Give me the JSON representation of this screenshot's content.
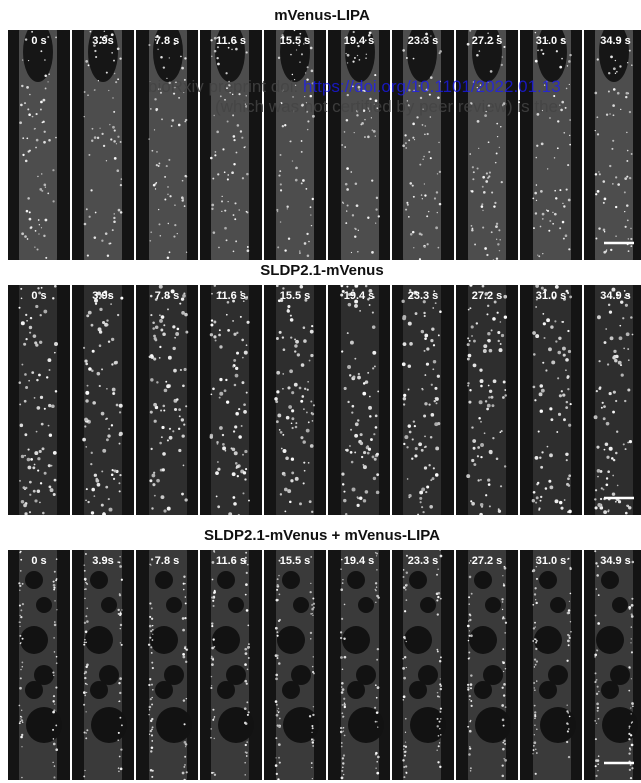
{
  "panels": [
    {
      "title": "mVenus-LIPA",
      "timepoints": [
        "0 s",
        "3.9s",
        "7.8 s",
        "11.6 s",
        "15.5 s",
        "19.4 s",
        "23.3 s",
        "27.2 s",
        "31.0 s",
        "34.9 s"
      ]
    },
    {
      "title": "SLDP2.1-mVenus",
      "timepoints": [
        "0 s",
        "3.9s",
        "7.8 s",
        "11.6 s",
        "15.5 s",
        "19.4 s",
        "23.3 s",
        "27.2 s",
        "31.0 s",
        "34.9 s"
      ]
    },
    {
      "title": "SLDP2.1-mVenus + mVenus-LIPA",
      "timepoints": [
        "0 s",
        "3.9s",
        "7.8 s",
        "11.6 s",
        "15.5 s",
        "19.4 s",
        "23.3 s",
        "27.2 s",
        "31.0 s",
        "34.9 s"
      ]
    }
  ],
  "watermark": {
    "prefix": "bioRxiv preprint doi:",
    "link": "https://doi.org/10.1101/2022.01.13",
    "line2": "(which was not certified by peer review) is the"
  }
}
